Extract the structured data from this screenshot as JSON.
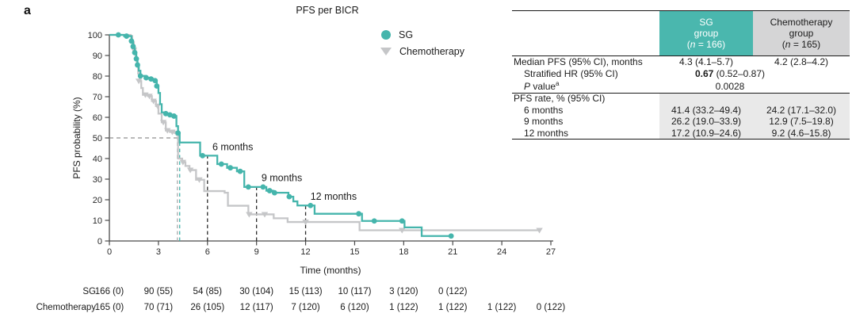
{
  "figure": {
    "panel_label": "a"
  },
  "colors": {
    "sg": "#45b5ac",
    "chemotherapy": "#c5c6c8",
    "sg_header_bg": "#4ab7ae",
    "sg_header_text": "#ffffff",
    "chemo_header_bg": "#d5d5d6",
    "chemo_header_text": "#1a1a1a",
    "section_shade": "#e9e9e9",
    "axis": "#4a4a4a",
    "dashed_gray": "#8f8f8f",
    "dashed_black": "#2b2b2b",
    "text": "#1c1c1c"
  },
  "chart_data": {
    "type": "line",
    "subtype": "kaplan-meier-step",
    "title": "PFS per BICR",
    "xlabel": "Time (months)",
    "ylabel": "PFS probability (%)",
    "xlim": [
      0,
      27
    ],
    "ylim": [
      0,
      100
    ],
    "xticks": [
      0,
      3,
      6,
      9,
      12,
      15,
      18,
      21,
      24,
      27
    ],
    "yticks": [
      0,
      10,
      20,
      30,
      40,
      50,
      60,
      70,
      80,
      90,
      100
    ],
    "legend_position": "upper-right-inside",
    "grid": false,
    "series": [
      {
        "name": "SG",
        "color": "#45b5ac",
        "marker": "circle",
        "steps": [
          [
            0,
            100
          ],
          [
            0.9,
            99.4
          ],
          [
            1.35,
            97.0
          ],
          [
            1.45,
            94.4
          ],
          [
            1.55,
            91.4
          ],
          [
            1.65,
            88.4
          ],
          [
            1.72,
            85.4
          ],
          [
            1.8,
            82.6
          ],
          [
            1.9,
            80.1
          ],
          [
            2.25,
            79.2
          ],
          [
            2.55,
            78.6
          ],
          [
            2.8,
            77.8
          ],
          [
            2.9,
            75.2
          ],
          [
            3.0,
            71.8
          ],
          [
            3.1,
            66.4
          ],
          [
            3.2,
            62.4
          ],
          [
            3.45,
            61.8
          ],
          [
            3.7,
            61.2
          ],
          [
            3.95,
            60.6
          ],
          [
            4.1,
            55.7
          ],
          [
            4.2,
            52.4
          ],
          [
            4.3,
            47.8
          ],
          [
            5.55,
            41.4
          ],
          [
            6.6,
            37.3
          ],
          [
            7.2,
            35.5
          ],
          [
            7.8,
            33.8
          ],
          [
            8.25,
            26.2
          ],
          [
            9.6,
            24.4
          ],
          [
            10.0,
            23.4
          ],
          [
            10.95,
            21.5
          ],
          [
            11.25,
            19.2
          ],
          [
            11.5,
            17.2
          ],
          [
            12.55,
            13.2
          ],
          [
            15.45,
            9.7
          ],
          [
            18.05,
            6.6
          ],
          [
            19.1,
            2.4
          ]
        ],
        "end": 21.0,
        "censors": [
          [
            0.55,
            100
          ],
          [
            1.05,
            99.4
          ],
          [
            1.35,
            97.0
          ],
          [
            1.45,
            94.4
          ],
          [
            1.55,
            91.4
          ],
          [
            1.65,
            88.4
          ],
          [
            1.72,
            85.4
          ],
          [
            1.9,
            80.1
          ],
          [
            2.25,
            79.2
          ],
          [
            2.55,
            78.6
          ],
          [
            2.8,
            77.8
          ],
          [
            2.9,
            75.2
          ],
          [
            3.45,
            61.8
          ],
          [
            3.7,
            61.2
          ],
          [
            3.95,
            60.6
          ],
          [
            4.2,
            52.4
          ],
          [
            5.7,
            41.4
          ],
          [
            6.85,
            37.3
          ],
          [
            7.4,
            35.5
          ],
          [
            8.0,
            33.8
          ],
          [
            8.5,
            26.2
          ],
          [
            9.4,
            26.2
          ],
          [
            9.8,
            24.4
          ],
          [
            10.1,
            23.4
          ],
          [
            11.0,
            21.5
          ],
          [
            12.3,
            17.2
          ],
          [
            15.25,
            13.2
          ],
          [
            16.2,
            9.7
          ],
          [
            17.9,
            9.7
          ],
          [
            20.9,
            2.4
          ]
        ]
      },
      {
        "name": "Chemotherapy",
        "color": "#c5c6c8",
        "marker": "triangle-down",
        "steps": [
          [
            0,
            100
          ],
          [
            1.3,
            99.4
          ],
          [
            1.4,
            96.4
          ],
          [
            1.5,
            92.7
          ],
          [
            1.6,
            88.5
          ],
          [
            1.68,
            84.8
          ],
          [
            1.76,
            81.2
          ],
          [
            1.85,
            77.6
          ],
          [
            1.95,
            74.2
          ],
          [
            2.05,
            70.9
          ],
          [
            2.35,
            70.3
          ],
          [
            2.6,
            67.9
          ],
          [
            2.85,
            65.5
          ],
          [
            3.0,
            61.8
          ],
          [
            3.2,
            57.6
          ],
          [
            3.45,
            53.6
          ],
          [
            3.7,
            52.9
          ],
          [
            4.0,
            52.3
          ],
          [
            4.2,
            40.0
          ],
          [
            4.45,
            38.2
          ],
          [
            4.65,
            36.4
          ],
          [
            4.9,
            34.4
          ],
          [
            5.3,
            29.7
          ],
          [
            5.8,
            24.2
          ],
          [
            7.05,
            23.4
          ],
          [
            7.25,
            17.1
          ],
          [
            8.5,
            12.9
          ],
          [
            10.05,
            11.0
          ],
          [
            10.9,
            9.2
          ],
          [
            15.3,
            5.2
          ]
        ],
        "end": 26.3,
        "censors": [
          [
            1.5,
            92.7
          ],
          [
            1.8,
            77.6
          ],
          [
            2.2,
            70.9
          ],
          [
            2.45,
            70.3
          ],
          [
            2.7,
            67.9
          ],
          [
            2.95,
            65.5
          ],
          [
            3.3,
            57.6
          ],
          [
            3.55,
            53.6
          ],
          [
            3.85,
            52.9
          ],
          [
            4.1,
            52.3
          ],
          [
            4.5,
            38.2
          ],
          [
            4.95,
            34.4
          ],
          [
            5.5,
            29.7
          ],
          [
            8.55,
            12.9
          ],
          [
            9.5,
            12.9
          ],
          [
            12.0,
            9.2
          ],
          [
            17.9,
            5.2
          ],
          [
            26.3,
            5.2
          ]
        ]
      }
    ],
    "reference_lines": [
      {
        "orientation": "h",
        "value": 50,
        "from": 0,
        "to": 4.3,
        "color": "#8f8f8f",
        "meaning": "50% probability"
      },
      {
        "orientation": "v",
        "value": 4.16,
        "to_pct": 50,
        "color": "#a8a9ab",
        "meaning": "chemotherapy median"
      },
      {
        "orientation": "v",
        "value": 4.3,
        "to_pct": 50,
        "color": "#45b5ac",
        "meaning": "SG median"
      },
      {
        "orientation": "v",
        "value": 6,
        "to_pct": 41.4,
        "color": "#2b2b2b",
        "meaning": "6-month landmark"
      },
      {
        "orientation": "v",
        "value": 9,
        "to_pct": 26.2,
        "color": "#2b2b2b",
        "meaning": "9-month landmark"
      },
      {
        "orientation": "v",
        "value": 12,
        "to_pct": 17.2,
        "color": "#2b2b2b",
        "meaning": "12-month landmark"
      }
    ],
    "annotations": [
      {
        "text": "6 months",
        "t": 6.3,
        "pct": 45.5
      },
      {
        "text": "9 months",
        "t": 9.3,
        "pct": 30.5
      },
      {
        "text": "12 months",
        "t": 12.3,
        "pct": 21.5
      }
    ]
  },
  "risk_table": {
    "rows": [
      {
        "label": "SG",
        "counts": [
          "166 (0)",
          "90 (55)",
          "54 (85)",
          "30 (104)",
          "15 (113)",
          "10 (117)",
          "3 (120)",
          "0 (122)"
        ]
      },
      {
        "label": "Chemotherapy",
        "counts": [
          "165 (0)",
          "70 (71)",
          "26 (105)",
          "12 (117)",
          "7 (120)",
          "6 (120)",
          "1 (122)",
          "1 (122)",
          "1 (122)",
          "0 (122)"
        ]
      }
    ],
    "month_step": 3
  },
  "summary_table": {
    "columns": [
      {
        "line1": "SG",
        "line2": "group",
        "n_open": "(",
        "n_symbol": "n",
        "n_rest": " = 166)",
        "bg": "#4ab7ae",
        "text_color": "#ffffff"
      },
      {
        "line1": "Chemotherapy",
        "line2": "group",
        "n_open": "(",
        "n_symbol": "n",
        "n_rest": " = 165)",
        "bg": "#d5d5d6",
        "text_color": "#1a1a1a"
      }
    ],
    "rows": [
      {
        "type": "values",
        "label": "Median PFS (95% CI), months",
        "indent": false,
        "values": [
          "4.3 (4.1–5.7)",
          "4.2 (2.8–4.2)"
        ]
      },
      {
        "type": "span",
        "label": "Stratified HR (95% CI)",
        "indent": true,
        "span_bold": "0.67",
        "span_rest": " (0.52–0.87)"
      },
      {
        "type": "span",
        "label_italic": "P",
        "label_rest": " value",
        "label_sup": "a",
        "indent": true,
        "span_bold": "",
        "span_rest": "0.0028"
      },
      {
        "type": "section",
        "label": "PFS rate, % (95% CI)",
        "indent": false
      },
      {
        "type": "values",
        "label": "6 months",
        "indent": true,
        "values": [
          "41.4 (33.2–49.4)",
          "24.2 (17.1–32.0)"
        ]
      },
      {
        "type": "values",
        "label": "9 months",
        "indent": true,
        "values": [
          "26.2 (19.0–33.9)",
          "12.9 (7.5–19.8)"
        ]
      },
      {
        "type": "values",
        "label": "12 months",
        "indent": true,
        "values": [
          "17.2 (10.9–24.6)",
          "9.2 (4.6–15.8)"
        ]
      }
    ]
  }
}
